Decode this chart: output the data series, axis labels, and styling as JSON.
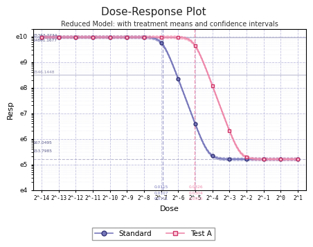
{
  "title": "Dose-Response Plot",
  "subtitle": "Reduced Model: with treatment means and confidence intervals",
  "xlabel": "Dose",
  "ylabel": "Resp",
  "std_color": "#7777bb",
  "testa_color": "#ee88aa",
  "std_ci_color": "#aaaadd",
  "testa_ci_color": "#ffbbcc",
  "grid_color": "#bbbbdd",
  "hline_color": "#9999bb",
  "vline_std_color": "#9999cc",
  "vline_testa_color": "#ee88aa",
  "background": "#ffffff",
  "xtick_exps": [
    -14,
    -13,
    -12,
    -11,
    -10,
    -9,
    -8,
    -7,
    -6,
    -5,
    -4,
    -3,
    -2,
    -1,
    0,
    1
  ],
  "std_annot": [
    "0.0115",
    "0.0107",
    "0.0111"
  ],
  "testa_annot": [
    "0.0326",
    "0.0304",
    "0.0315"
  ],
  "top_annot1": "15363.7734",
  "top_annot2": "14861.1677",
  "mid_annot": "1546.1448",
  "bot_annot1": "167.0495",
  "bot_annot2": "153.7985"
}
